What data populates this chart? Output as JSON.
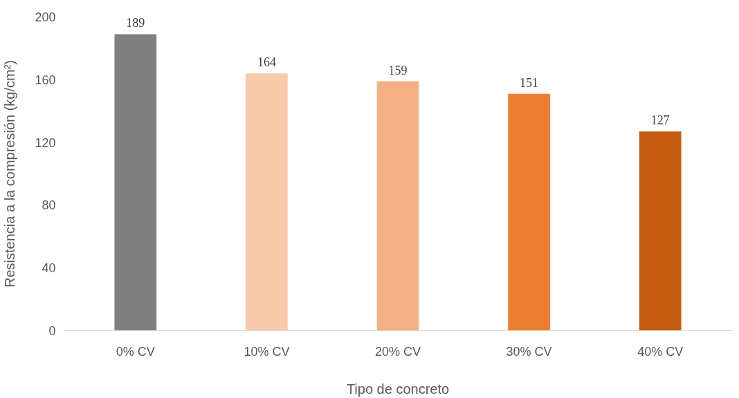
{
  "chart_data": {
    "type": "bar",
    "xlabel": "Tipo de concreto",
    "ylabel": "Resistencia a la compresión (kg/cm²)",
    "categories": [
      "0% CV",
      "10% CV",
      "20% CV",
      "30% CV",
      "40% CV"
    ],
    "values": [
      189,
      164,
      159,
      151,
      127
    ],
    "colors": [
      "#7f7f7f",
      "#f8cbad",
      "#f4b183",
      "#ed7d31",
      "#c55a11"
    ],
    "ylim": [
      0,
      200
    ],
    "yticks": [
      0,
      40,
      80,
      120,
      160,
      200
    ],
    "grid": false,
    "data_labels": true
  }
}
